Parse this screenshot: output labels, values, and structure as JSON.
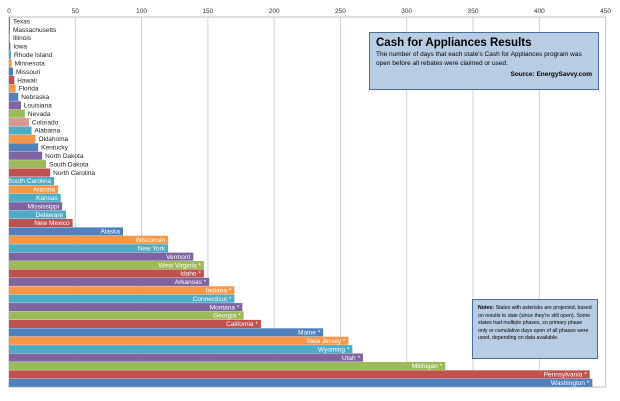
{
  "chart_data": {
    "type": "bar",
    "orientation": "horizontal",
    "title": "Cash for Appliances Results",
    "subtitle": "The number of days that each state's Cash for Appliances program was open before all rebates were claimed or used.",
    "source": "Source: EnergySavvy.com",
    "notes_label": "Notes:",
    "notes": "States with asterisks are projected, based on results to date (since they're still open). Some states had multiple phases, so primary phase only or cumulative days open of all phases were used, depending on data available.",
    "xlim": [
      0,
      450
    ],
    "x_ticks": [
      0,
      50,
      100,
      150,
      200,
      250,
      300,
      350,
      400,
      450
    ],
    "grid": true,
    "categories": [
      "Texas",
      "Massachusetts",
      "Illinois",
      "Iowa",
      "Rhode Island",
      "Minnesota",
      "Missouri",
      "Hawaii",
      "Florida",
      "Nebraska",
      "Louisiana",
      "Nevada",
      "Colorado",
      "Alabama",
      "Oklahoma",
      "Kentucky",
      "North Dakota",
      "South Dakota",
      "North Carolina",
      "South Carolina",
      "Arizona",
      "Kansas",
      "Mississippi",
      "Delaware",
      "New Mexico",
      "Alaska",
      "Wisconsin",
      "New York",
      "Vermont",
      "West Virginia *",
      "Idaho *",
      "Arkansas *",
      "Indiana *",
      "Connecticut *",
      "Montana *",
      "Georgia *",
      "California *",
      "Maine *",
      "New Jersey *",
      "Wyoming *",
      "Utah *",
      "Michigan *",
      "Pennsylvania *",
      "Washington *"
    ],
    "values": [
      0.3,
      0.5,
      0.7,
      1,
      1.5,
      2,
      3,
      4,
      5,
      7,
      9,
      12,
      15,
      17,
      20,
      22,
      25,
      28,
      31,
      34,
      37,
      39,
      40,
      43,
      48,
      86,
      120,
      120,
      139,
      147,
      147,
      151,
      170,
      170,
      176,
      177,
      190,
      237,
      256,
      259,
      267,
      329,
      438,
      440
    ],
    "bar_colors": [
      "#4f81bd",
      "#c0504d",
      "#9bbb59",
      "#8064a2",
      "#4bacc6",
      "#f79646",
      "#4f81bd",
      "#c0504d",
      "#f79646",
      "#4f81bd",
      "#8064a2",
      "#9bbb59",
      "#d99694",
      "#4bacc6",
      "#f79646",
      "#4f81bd",
      "#8064a2",
      "#9bbb59",
      "#c0504d",
      "#4bacc6",
      "#f79646",
      "#4bacc6",
      "#8064a2",
      "#4bacc6",
      "#c0504d",
      "#4f81bd",
      "#f79646",
      "#4bacc6",
      "#8064a2",
      "#9bbb59",
      "#c0504d",
      "#8064a2",
      "#f79646",
      "#4bacc6",
      "#8064a2",
      "#9bbb59",
      "#c0504d",
      "#4f81bd",
      "#f79646",
      "#4bacc6",
      "#8064a2",
      "#9bbb59",
      "#c0504d",
      "#4f81bd"
    ]
  }
}
